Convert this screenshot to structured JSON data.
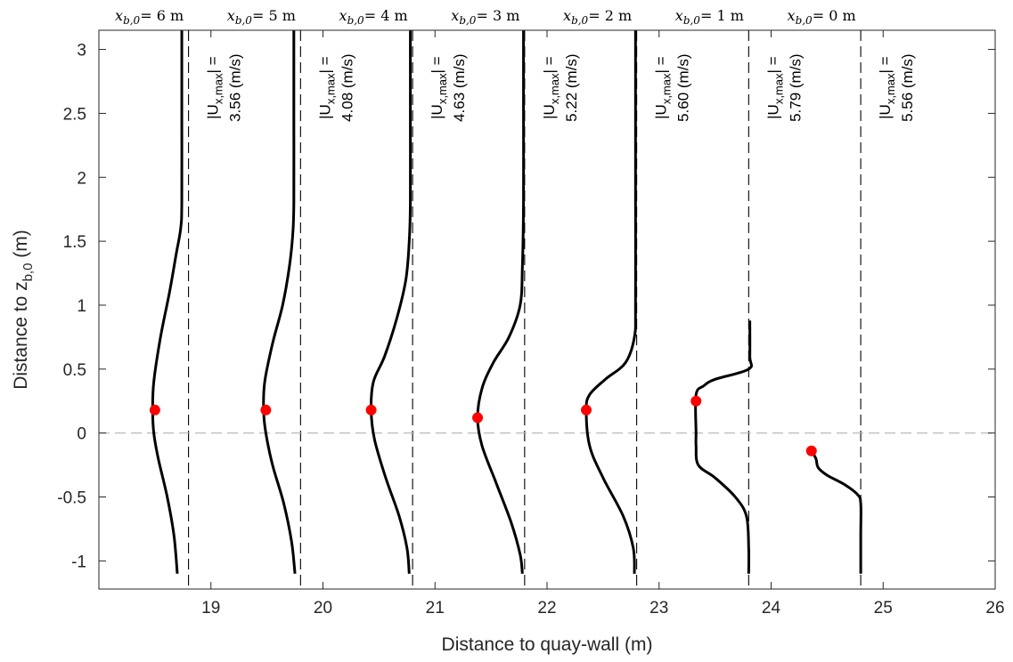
{
  "chart_data": {
    "type": "line",
    "title": "",
    "xlabel": "Distance to quay-wall (m)",
    "ylabel": "Distance to z",
    "ylabel_sub": "b,0",
    "ylabel_unit": " (m)",
    "xlim": [
      18,
      26
    ],
    "ylim": [
      -1.22,
      3.15
    ],
    "xticks": [
      19,
      20,
      21,
      22,
      23,
      24,
      25,
      26
    ],
    "xtick_labels": [
      "19",
      "20",
      "21",
      "22",
      "23",
      "24",
      "25",
      "26"
    ],
    "yticks": [
      -1,
      -0.5,
      0,
      0.5,
      1,
      1.5,
      2,
      2.5,
      3
    ],
    "ytick_labels": [
      "-1",
      "-0.5",
      "0",
      "0.5",
      "1",
      "1.5",
      "2",
      "2.5",
      "3"
    ],
    "reference_line_y": 0,
    "grid": false,
    "columns": [
      {
        "label": "x",
        "label_sub": "b,0",
        "label_rest": "= 6 m",
        "wall_x": 18.8,
        "vel_label": "|U",
        "vel_sub": "x,max",
        "vel_eq": "| =",
        "vel_value": "3.56 (m/s)",
        "profile": [
          [
            18.74,
            3.15
          ],
          [
            18.74,
            2.5
          ],
          [
            18.74,
            1.8
          ],
          [
            18.73,
            1.6
          ],
          [
            18.69,
            1.4
          ],
          [
            18.63,
            1.1
          ],
          [
            18.55,
            0.75
          ],
          [
            18.49,
            0.4
          ],
          [
            18.48,
            0.18
          ],
          [
            18.49,
            0.0
          ],
          [
            18.53,
            -0.2
          ],
          [
            18.61,
            -0.5
          ],
          [
            18.67,
            -0.8
          ],
          [
            18.7,
            -1.1
          ]
        ],
        "max_point": [
          18.5,
          0.18
        ]
      },
      {
        "label": "x",
        "label_sub": "b,0",
        "label_rest": "= 5 m",
        "wall_x": 19.8,
        "vel_label": "|U",
        "vel_sub": "x,max",
        "vel_eq": "| =",
        "vel_value": "4.08 (m/s)",
        "profile": [
          [
            19.74,
            3.15
          ],
          [
            19.74,
            2.5
          ],
          [
            19.74,
            1.8
          ],
          [
            19.73,
            1.55
          ],
          [
            19.7,
            1.3
          ],
          [
            19.64,
            1.0
          ],
          [
            19.55,
            0.7
          ],
          [
            19.48,
            0.4
          ],
          [
            19.47,
            0.18
          ],
          [
            19.49,
            0.0
          ],
          [
            19.55,
            -0.25
          ],
          [
            19.65,
            -0.55
          ],
          [
            19.72,
            -0.85
          ],
          [
            19.75,
            -1.1
          ]
        ],
        "max_point": [
          19.49,
          0.18
        ]
      },
      {
        "label": "x",
        "label_sub": "b,0",
        "label_rest": "= 4 m",
        "wall_x": 20.8,
        "vel_label": "|U",
        "vel_sub": "x,max",
        "vel_eq": "| =",
        "vel_value": "4.63 (m/s)",
        "profile": [
          [
            20.78,
            3.15
          ],
          [
            20.78,
            2.5
          ],
          [
            20.78,
            1.8
          ],
          [
            20.77,
            1.5
          ],
          [
            20.74,
            1.2
          ],
          [
            20.66,
            0.9
          ],
          [
            20.55,
            0.6
          ],
          [
            20.45,
            0.4
          ],
          [
            20.43,
            0.18
          ],
          [
            20.46,
            -0.05
          ],
          [
            20.56,
            -0.35
          ],
          [
            20.68,
            -0.65
          ],
          [
            20.75,
            -0.9
          ],
          [
            20.77,
            -1.1
          ]
        ],
        "max_point": [
          20.43,
          0.18
        ]
      },
      {
        "label": "x",
        "label_sub": "b,0",
        "label_rest": "= 3 m",
        "wall_x": 21.8,
        "vel_label": "|U",
        "vel_sub": "x,max",
        "vel_eq": "| =",
        "vel_value": "5.22 (m/s)",
        "profile": [
          [
            21.79,
            3.15
          ],
          [
            21.79,
            2.5
          ],
          [
            21.79,
            1.8
          ],
          [
            21.78,
            1.3
          ],
          [
            21.76,
            1.0
          ],
          [
            21.66,
            0.75
          ],
          [
            21.52,
            0.55
          ],
          [
            21.42,
            0.35
          ],
          [
            21.38,
            0.12
          ],
          [
            21.42,
            -0.1
          ],
          [
            21.55,
            -0.4
          ],
          [
            21.68,
            -0.7
          ],
          [
            21.76,
            -0.95
          ],
          [
            21.78,
            -1.1
          ]
        ],
        "max_point": [
          21.38,
          0.12
        ]
      },
      {
        "label": "x",
        "label_sub": "b,0",
        "label_rest": "= 2 m",
        "wall_x": 22.8,
        "vel_label": "|U",
        "vel_sub": "x,max",
        "vel_eq": "| =",
        "vel_value": "5.60 (m/s)",
        "profile": [
          [
            22.79,
            3.15
          ],
          [
            22.79,
            2.5
          ],
          [
            22.79,
            1.8
          ],
          [
            22.79,
            1.0
          ],
          [
            22.78,
            0.75
          ],
          [
            22.7,
            0.55
          ],
          [
            22.52,
            0.42
          ],
          [
            22.38,
            0.3
          ],
          [
            22.35,
            0.18
          ],
          [
            22.38,
            -0.1
          ],
          [
            22.5,
            -0.35
          ],
          [
            22.68,
            -0.65
          ],
          [
            22.77,
            -0.9
          ],
          [
            22.78,
            -1.1
          ]
        ],
        "max_point": [
          22.35,
          0.18
        ]
      },
      {
        "label": "x",
        "label_sub": "b,0",
        "label_rest": "= 1 m",
        "wall_x": 23.8,
        "vel_label": "|U",
        "vel_sub": "x,max",
        "vel_eq": "| =",
        "vel_value": "5.79 (m/s)",
        "profile": [
          [
            23.81,
            0.88
          ],
          [
            23.81,
            0.6
          ],
          [
            23.8,
            0.5
          ],
          [
            23.5,
            0.42
          ],
          [
            23.4,
            0.37
          ],
          [
            23.33,
            0.3
          ],
          [
            23.33,
            0.0
          ],
          [
            23.33,
            -0.1
          ],
          [
            23.35,
            -0.25
          ],
          [
            23.5,
            -0.35
          ],
          [
            23.68,
            -0.5
          ],
          [
            23.78,
            -0.65
          ],
          [
            23.8,
            -0.9
          ],
          [
            23.8,
            -1.1
          ]
        ],
        "max_point": [
          23.33,
          0.25
        ]
      },
      {
        "label": "x",
        "label_sub": "b,0",
        "label_rest": "= 0 m",
        "wall_x": 24.8,
        "vel_label": "|U",
        "vel_sub": "x,max",
        "vel_eq": "| =",
        "vel_value": "5.56 (m/s)",
        "profile": [
          [
            24.36,
            -0.14
          ],
          [
            24.4,
            -0.2
          ],
          [
            24.42,
            -0.27
          ],
          [
            24.5,
            -0.33
          ],
          [
            24.65,
            -0.4
          ],
          [
            24.77,
            -0.48
          ],
          [
            24.8,
            -0.55
          ],
          [
            24.8,
            -0.8
          ],
          [
            24.8,
            -1.1
          ]
        ],
        "max_point": [
          24.36,
          -0.14
        ]
      }
    ],
    "colors": {
      "profile": "#000000",
      "max_point": "#ff0000",
      "wall": "#000000",
      "zero_line": "#b3b3b3",
      "axis": "#262626"
    }
  }
}
